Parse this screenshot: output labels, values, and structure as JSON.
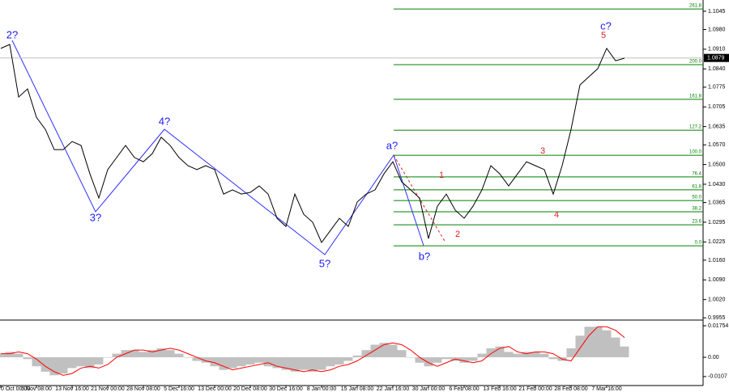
{
  "chart_data": {
    "type": "line",
    "categories": [
      "0 Oct 00:00",
      null,
      null,
      null,
      "6 Nov 08:00",
      null,
      null,
      null,
      "13 Nov 16:00",
      null,
      null,
      null,
      "21 Nov 00:00",
      null,
      null,
      null,
      "28 Nov 08:00",
      null,
      null,
      null,
      "5 Dec 16:00",
      null,
      null,
      null,
      "13 Dec 00:00",
      null,
      null,
      null,
      "20 Dec 08:00",
      null,
      null,
      null,
      "30 Dec 16:00",
      null,
      null,
      null,
      "8 Jan 00:00",
      null,
      null,
      null,
      "15 Jan 08:00",
      null,
      null,
      null,
      "22 Jan 16:00",
      null,
      null,
      null,
      "30 Jan 00:00",
      null,
      null,
      null,
      "6 Feb 08:00",
      null,
      null,
      null,
      "13 Feb 16:00",
      null,
      null,
      null,
      "21 Feb 00:00",
      null,
      null,
      null,
      "28 Feb 08:00",
      null,
      null,
      null,
      "7 Mar 16:00",
      null,
      null,
      null,
      null,
      null,
      null,
      null,
      null,
      null
    ],
    "series": [
      {
        "color": "#000000",
        "values": [
          1.0913,
          1.0927,
          1.074,
          1.0769,
          1.0668,
          1.0625,
          1.0553,
          1.0553,
          1.0582,
          1.0568,
          1.0467,
          1.0381,
          1.0482,
          1.0525,
          1.0568,
          1.0525,
          1.051,
          1.0539,
          1.0597,
          1.0568,
          1.0525,
          1.0496,
          1.0482,
          1.0496,
          1.0482,
          1.0395,
          1.041,
          1.0395,
          1.0401,
          1.0424,
          1.0395,
          1.0309,
          1.028,
          1.0395,
          1.0323,
          1.0295,
          1.0223,
          1.0266,
          1.0309,
          1.028,
          1.0367,
          1.0395,
          1.041,
          1.0467,
          1.051,
          1.0438,
          1.041,
          1.0381,
          1.0237,
          1.0352,
          1.0395,
          1.0338,
          1.0309,
          1.0352,
          1.041,
          1.0496,
          1.0467,
          1.0424,
          1.0467,
          1.051,
          1.0496,
          1.0482,
          1.0395,
          1.0496,
          1.0625,
          1.0783,
          1.0812,
          1.0841,
          1.0913,
          1.0869,
          1.0878,
          null,
          null,
          null,
          null,
          null,
          null,
          null
        ]
      }
    ],
    "ylim": [
      0.995,
      1.1085
    ],
    "yticks": [
      1.1045,
      {
        "value": 1.098,
        "label": "1.0980"
      },
      {
        "value": 1.091,
        "label": "1.0910"
      },
      {
        "value": 1.084,
        "label": "1.0840"
      },
      1.0775,
      1.0705,
      1.0635,
      {
        "value": 1.057,
        "label": "1.0570"
      },
      {
        "value": 1.05,
        "label": "1.0500"
      },
      {
        "value": 1.043,
        "label": "1.0430"
      },
      1.0365,
      1.0295,
      1.0225,
      {
        "value": 1.016,
        "label": "1.0160"
      },
      {
        "value": 1.009,
        "label": "1.0090"
      },
      {
        "value": 1.002,
        "label": "1.0020"
      },
      0.9955
    ],
    "current_price": 1.0879,
    "fib_color": "#008000",
    "fib_levels": [
      {
        "label": "261.8",
        "price": 1.1053
      },
      {
        "label": "200.0",
        "price": 1.0855
      },
      {
        "label": "161.8",
        "price": 1.0732
      },
      {
        "label": "127.2",
        "price": 1.0622
      },
      {
        "label": "100.0",
        "price": 1.0533
      },
      {
        "label": "76.4",
        "price": 1.0456
      },
      {
        "label": "61.8",
        "price": 1.041
      },
      {
        "label": "50.0",
        "price": 1.0372
      },
      {
        "label": "38.2",
        "price": 1.0332
      },
      {
        "label": "23.6",
        "price": 1.0286
      },
      {
        "label": "0.0",
        "price": 1.0211
      }
    ],
    "wave_labels": [
      {
        "text": "2?",
        "color": "#1a1aff"
      },
      {
        "text": "3?",
        "color": "#1a1aff"
      },
      {
        "text": "4?",
        "color": "#1a1aff"
      },
      {
        "text": "5?",
        "color": "#1a1aff"
      },
      {
        "text": "a?",
        "color": "#1a1aff"
      },
      {
        "text": "b?",
        "color": "#1a1aff"
      },
      {
        "text": "c?",
        "color": "#1a1aff"
      },
      {
        "text": "1",
        "color": "#e02020"
      },
      {
        "text": "2",
        "color": "#e02020"
      },
      {
        "text": "3",
        "color": "#e02020"
      },
      {
        "text": "4",
        "color": "#e02020"
      },
      {
        "text": "5",
        "color": "#e02020"
      }
    ],
    "oscillator": {
      "type": "bar",
      "color": "#c0c0c0",
      "signal_color": "#ff0000",
      "histogram": [
        0.002,
        0.003,
        0.002,
        -0.001,
        -0.005,
        -0.008,
        -0.01,
        -0.009,
        -0.006,
        -0.005,
        -0.006,
        -0.004,
        0,
        0.002,
        0.004,
        0.004,
        0.003,
        0.004,
        0.005,
        0.004,
        0.002,
        0,
        -0.002,
        -0.003,
        -0.005,
        -0.007,
        -0.006,
        -0.005,
        -0.004,
        -0.003,
        -0.005,
        -0.006,
        -0.007,
        -0.008,
        -0.007,
        -0.008,
        -0.007,
        -0.005,
        -0.004,
        -0.002,
        0.001,
        0.004,
        0.007,
        0.008,
        0.007,
        0.004,
        0,
        -0.003,
        -0.005,
        -0.003,
        -0.001,
        -0.002,
        -0.003,
        -0.002,
        0.002,
        0.005,
        0.006,
        0.003,
        0.002,
        0.003,
        0.003,
        0.002,
        -0.001,
        -0.002,
        0.005,
        0.012,
        0.017,
        0.017,
        0.015,
        0.011,
        0.006,
        null,
        null,
        null,
        null,
        null,
        null,
        null
      ],
      "signal": [
        0.002,
        0.002,
        0.003,
        0.002,
        -0.001,
        -0.005,
        -0.008,
        -0.01,
        -0.009,
        -0.006,
        -0.005,
        -0.006,
        -0.004,
        0,
        0.002,
        0.004,
        0.004,
        0.003,
        0.004,
        0.005,
        0.004,
        0.002,
        0,
        -0.002,
        -0.003,
        -0.005,
        -0.007,
        -0.006,
        -0.005,
        -0.004,
        -0.003,
        -0.005,
        -0.006,
        -0.007,
        -0.008,
        -0.007,
        -0.008,
        -0.007,
        -0.005,
        -0.004,
        -0.002,
        0.001,
        0.004,
        0.007,
        0.008,
        0.007,
        0.004,
        0,
        -0.003,
        -0.005,
        -0.003,
        -0.001,
        -0.002,
        -0.003,
        -0.002,
        0.002,
        0.005,
        0.006,
        0.003,
        0.002,
        0.003,
        0.003,
        0.002,
        -0.001,
        -0.002,
        0.005,
        0.012,
        0.017,
        0.017,
        0.015,
        0.011,
        null,
        null,
        null,
        null,
        null,
        null,
        null
      ],
      "ylim": [
        -0.0148,
        0.0198
      ],
      "yticks": [
        0.01754,
        {
          "value": 0,
          "label": "0.00"
        },
        -0.0107
      ]
    }
  }
}
